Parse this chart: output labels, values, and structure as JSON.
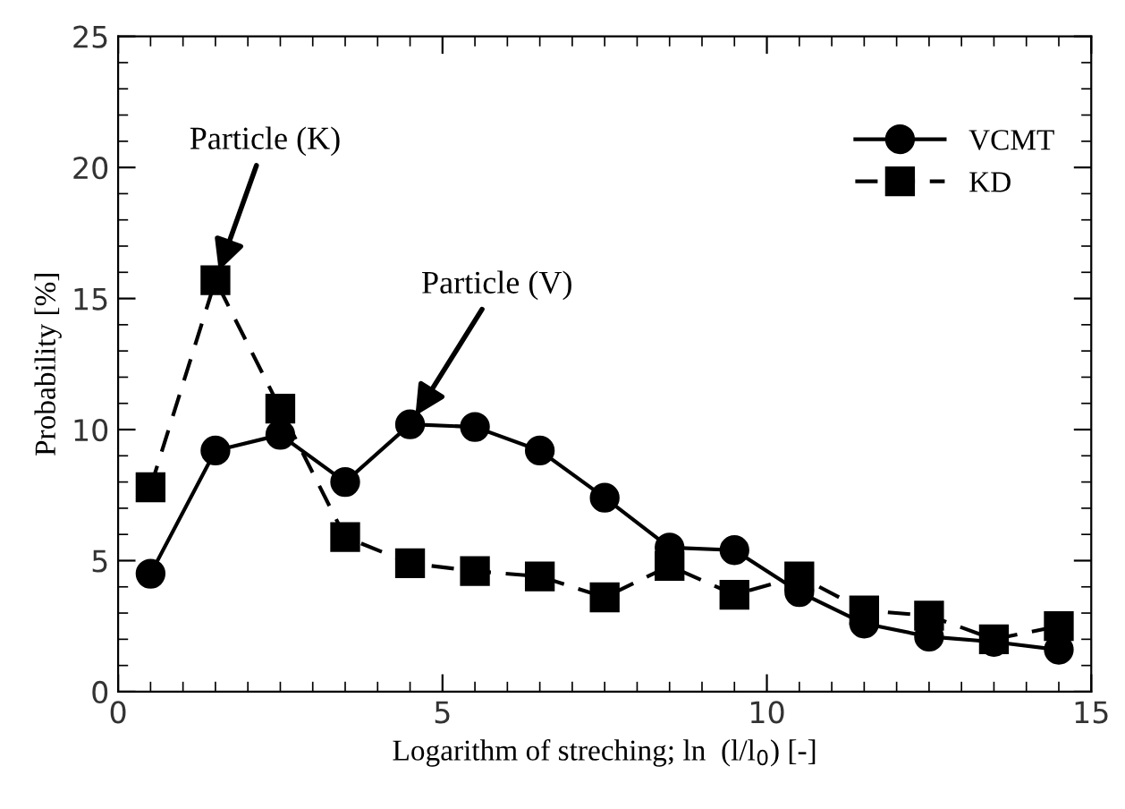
{
  "chart_data": {
    "type": "line",
    "xlabel": "Logarithm of streching; ln  (l/l$_{0}$) [-]",
    "ylabel": "Probability [%]",
    "x": [
      0.5,
      1.5,
      2.5,
      3.5,
      4.5,
      5.5,
      6.5,
      7.5,
      8.5,
      9.5,
      10.5,
      11.5,
      12.5,
      13.5,
      14.5
    ],
    "series": [
      {
        "name": "VCMT",
        "color": "#000000",
        "marker": "circle",
        "line_style": "solid",
        "values": [
          4.5,
          9.2,
          9.8,
          8.0,
          10.2,
          10.1,
          9.2,
          7.4,
          5.5,
          5.4,
          3.8,
          2.6,
          2.1,
          1.9,
          1.6
        ]
      },
      {
        "name": "KD",
        "color": "#000000",
        "marker": "square",
        "line_style": "dashed",
        "values": [
          7.8,
          15.7,
          10.8,
          5.9,
          4.9,
          4.6,
          4.4,
          3.6,
          4.8,
          3.7,
          4.4,
          3.1,
          2.9,
          2.0,
          2.5
        ]
      }
    ],
    "annotations": [
      {
        "text": "Particle (K)",
        "x": 1.5,
        "y": 15.7
      },
      {
        "text": "Particle (V)",
        "x": 4.5,
        "y": 10.2
      }
    ],
    "xlim": [
      0,
      15
    ],
    "xticks": [
      0,
      5,
      10,
      15
    ],
    "ylim": [
      0,
      25
    ],
    "yticks": [
      0,
      5,
      10,
      15,
      20,
      25
    ],
    "grid": false,
    "legend": "top right"
  }
}
